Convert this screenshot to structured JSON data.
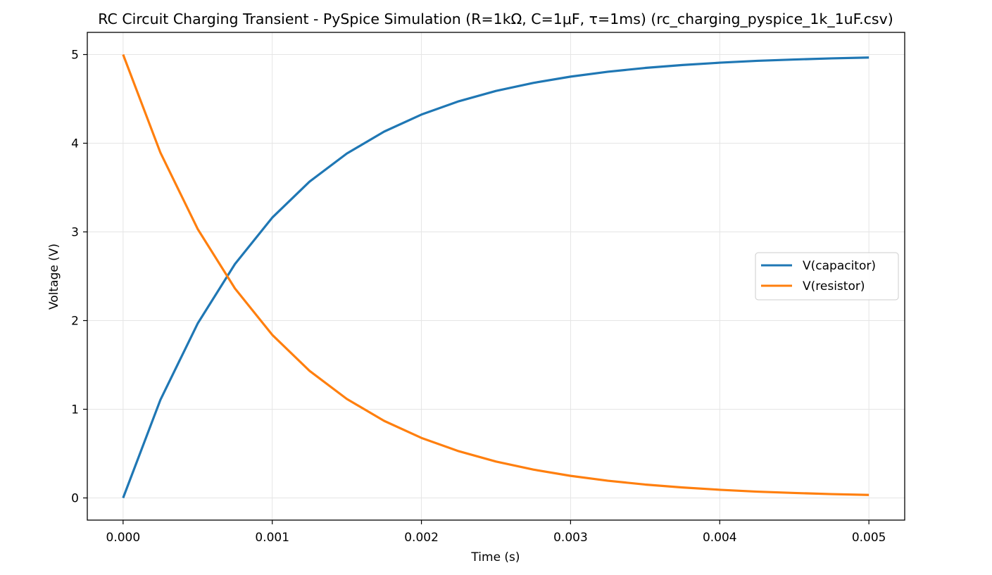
{
  "chart_data": {
    "type": "line",
    "title": "RC Circuit Charging Transient - PySpice Simulation (R=1kΩ, C=1μF, τ=1ms) (rc_charging_pyspice_1k_1uF.csv)",
    "xlabel": "Time (s)",
    "ylabel": "Voltage (V)",
    "xlim": [
      -0.00024,
      0.00524
    ],
    "ylim": [
      -0.25,
      5.25
    ],
    "grid": true,
    "legend_position": "center-right",
    "x_ticks": [
      "0.000",
      "0.001",
      "0.002",
      "0.003",
      "0.004",
      "0.005"
    ],
    "y_ticks": [
      "0",
      "1",
      "2",
      "3",
      "4",
      "5"
    ],
    "x": [
      0,
      0.00025,
      0.0005,
      0.00075,
      0.001,
      0.00125,
      0.0015,
      0.00175,
      0.002,
      0.00225,
      0.0025,
      0.00275,
      0.003,
      0.00325,
      0.0035,
      0.00375,
      0.004,
      0.00425,
      0.0045,
      0.00475,
      0.005
    ],
    "series": [
      {
        "name": "V(capacitor)",
        "color": "#1f77b4",
        "values": [
          0,
          1.106,
          1.967,
          2.638,
          3.161,
          3.567,
          3.884,
          4.131,
          4.323,
          4.473,
          4.59,
          4.68,
          4.751,
          4.806,
          4.849,
          4.882,
          4.908,
          4.929,
          4.944,
          4.957,
          4.966
        ]
      },
      {
        "name": "V(resistor)",
        "color": "#ff7f0e",
        "values": [
          5.0,
          3.894,
          3.033,
          2.362,
          1.839,
          1.433,
          1.116,
          0.869,
          0.677,
          0.527,
          0.41,
          0.32,
          0.249,
          0.194,
          0.151,
          0.118,
          0.092,
          0.071,
          0.056,
          0.043,
          0.034
        ]
      }
    ]
  }
}
